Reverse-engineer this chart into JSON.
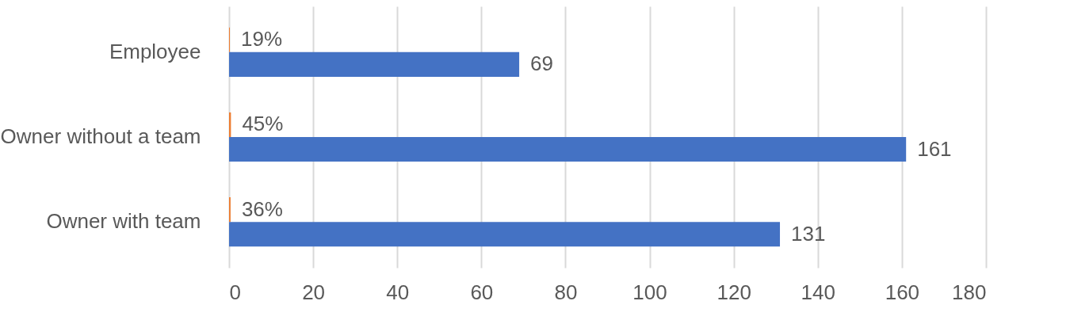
{
  "chart_data": {
    "type": "bar",
    "orientation": "horizontal",
    "categories": [
      "Employee",
      "Owner without a team",
      "Owner with team"
    ],
    "series": [
      {
        "color": "#ed7d31",
        "values": [
          0.19,
          0.45,
          0.36
        ],
        "value_labels": [
          "19%",
          "45%",
          "36%"
        ]
      },
      {
        "color": "#4472c4",
        "values": [
          69,
          161,
          131
        ],
        "value_labels": [
          "69",
          "161",
          "131"
        ]
      }
    ],
    "xlim": [
      0,
      180
    ],
    "xticks": [
      0,
      20,
      40,
      60,
      80,
      100,
      120,
      140,
      160,
      180
    ],
    "grid": "x",
    "legend": false
  }
}
